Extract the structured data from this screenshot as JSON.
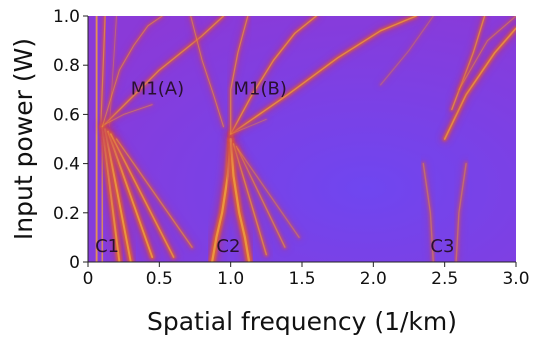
{
  "chart_data": {
    "type": "heatmap",
    "title": "",
    "xlabel": "Spatial frequency (1/km)",
    "ylabel": "Input power (W)",
    "xlim": [
      0,
      3.0
    ],
    "ylim": [
      0,
      1.0
    ],
    "x_ticks": [
      0,
      0.5,
      1.0,
      1.5,
      2.0,
      2.5,
      3.0
    ],
    "x_tick_labels": [
      "0",
      "0.5",
      "1.0",
      "1.5",
      "2.0",
      "2.5",
      "3.0"
    ],
    "y_ticks": [
      0,
      0.2,
      0.4,
      0.6,
      0.8,
      1.0
    ],
    "y_tick_labels": [
      "0",
      "0.2",
      "0.4",
      "0.6",
      "0.8",
      "1.0"
    ],
    "grid": false,
    "colors": {
      "background": "#7a3ae8",
      "ridge": "#e0642a",
      "ridge_core": "#f0a040",
      "ridge_glow": "#b8307a"
    },
    "annotations": [
      {
        "text": "C1",
        "x": 0.05,
        "y": 0.04
      },
      {
        "text": "C2",
        "x": 0.9,
        "y": 0.04
      },
      {
        "text": "C3",
        "x": 2.4,
        "y": 0.04
      },
      {
        "text": "M1(A)",
        "x": 0.3,
        "y": 0.68
      },
      {
        "text": "M1(B)",
        "x": 1.02,
        "y": 0.68
      }
    ],
    "ridges": [
      {
        "x": [
          0.06,
          0.06
        ],
        "y": [
          0,
          1.0
        ],
        "w": 0.03,
        "i": 1.0
      },
      {
        "x": [
          0.09,
          0.12
        ],
        "y": [
          0.55,
          1.0
        ],
        "w": 0.018,
        "i": 0.7
      },
      {
        "x": [
          0.15,
          0.2
        ],
        "y": [
          0.55,
          1.0
        ],
        "w": 0.012,
        "i": 0.4
      },
      {
        "x": [
          0.1,
          0.1
        ],
        "y": [
          0.55,
          0
        ],
        "w": 0.025,
        "i": 0.9
      },
      {
        "x": [
          0.1,
          0.22
        ],
        "y": [
          0.55,
          0
        ],
        "w": 0.03,
        "i": 1.0
      },
      {
        "x": [
          0.12,
          0.3
        ],
        "y": [
          0.54,
          0
        ],
        "w": 0.03,
        "i": 1.0
      },
      {
        "x": [
          0.14,
          0.45
        ],
        "y": [
          0.53,
          0.02
        ],
        "w": 0.028,
        "i": 0.95
      },
      {
        "x": [
          0.16,
          0.6
        ],
        "y": [
          0.52,
          0.02
        ],
        "w": 0.025,
        "i": 0.85
      },
      {
        "x": [
          0.2,
          0.73
        ],
        "y": [
          0.5,
          0.06
        ],
        "w": 0.02,
        "i": 0.6
      },
      {
        "x": [
          0.1,
          0.5,
          0.8,
          0.95
        ],
        "y": [
          0.55,
          0.78,
          0.92,
          1.0
        ],
        "w": 0.02,
        "i": 0.75
      },
      {
        "x": [
          0.1,
          0.22,
          0.32,
          0.42,
          0.52
        ],
        "y": [
          0.55,
          0.78,
          0.88,
          0.96,
          1.0
        ],
        "w": 0.016,
        "i": 0.6
      },
      {
        "x": [
          0.12,
          0.25,
          0.45
        ],
        "y": [
          0.56,
          0.6,
          0.64
        ],
        "w": 0.012,
        "i": 0.5
      },
      {
        "x": [
          1.0,
          0.98,
          0.94,
          0.9,
          0.87
        ],
        "y": [
          0.5,
          0.35,
          0.2,
          0.1,
          0
        ],
        "w": 0.035,
        "i": 1.0
      },
      {
        "x": [
          1.0,
          1.02,
          1.06,
          1.1,
          1.13
        ],
        "y": [
          0.5,
          0.35,
          0.2,
          0.1,
          0
        ],
        "w": 0.035,
        "i": 1.0
      },
      {
        "x": [
          1.02,
          1.25
        ],
        "y": [
          0.48,
          0.03
        ],
        "w": 0.022,
        "i": 0.7
      },
      {
        "x": [
          1.04,
          1.38
        ],
        "y": [
          0.47,
          0.06
        ],
        "w": 0.02,
        "i": 0.6
      },
      {
        "x": [
          1.05,
          1.48
        ],
        "y": [
          0.46,
          0.1
        ],
        "w": 0.018,
        "i": 0.45
      },
      {
        "x": [
          1.0,
          1.4,
          1.75,
          2.05,
          2.3
        ],
        "y": [
          0.52,
          0.68,
          0.83,
          0.94,
          1.0
        ],
        "w": 0.022,
        "i": 0.85
      },
      {
        "x": [
          1.0,
          1.15,
          1.3,
          1.45,
          1.6
        ],
        "y": [
          0.52,
          0.68,
          0.82,
          0.93,
          1.0
        ],
        "w": 0.02,
        "i": 0.8
      },
      {
        "x": [
          1.0,
          1.0,
          1.05,
          1.12
        ],
        "y": [
          0.52,
          0.7,
          0.85,
          1.0
        ],
        "w": 0.018,
        "i": 0.7
      },
      {
        "x": [
          0.95,
          0.88,
          0.8,
          0.72
        ],
        "y": [
          0.55,
          0.68,
          0.82,
          1.0
        ],
        "w": 0.016,
        "i": 0.6
      },
      {
        "x": [
          1.0,
          1.25
        ],
        "y": [
          0.52,
          0.58
        ],
        "w": 0.012,
        "i": 0.4
      },
      {
        "x": [
          2.42,
          2.4,
          2.35
        ],
        "y": [
          0.0,
          0.2,
          0.4
        ],
        "w": 0.022,
        "i": 0.45
      },
      {
        "x": [
          2.58,
          2.6,
          2.65
        ],
        "y": [
          0.0,
          0.2,
          0.4
        ],
        "w": 0.022,
        "i": 0.45
      },
      {
        "x": [
          2.5,
          2.65,
          2.85,
          3.0
        ],
        "y": [
          0.5,
          0.68,
          0.85,
          0.95
        ],
        "w": 0.025,
        "i": 0.85
      },
      {
        "x": [
          2.55,
          2.7,
          2.78
        ],
        "y": [
          0.62,
          0.85,
          1.0
        ],
        "w": 0.02,
        "i": 0.75
      },
      {
        "x": [
          2.6,
          2.8,
          3.0
        ],
        "y": [
          0.7,
          0.9,
          1.0
        ],
        "w": 0.016,
        "i": 0.5
      },
      {
        "x": [
          2.05,
          2.25,
          2.42
        ],
        "y": [
          0.72,
          0.86,
          1.0
        ],
        "w": 0.014,
        "i": 0.35
      }
    ]
  }
}
